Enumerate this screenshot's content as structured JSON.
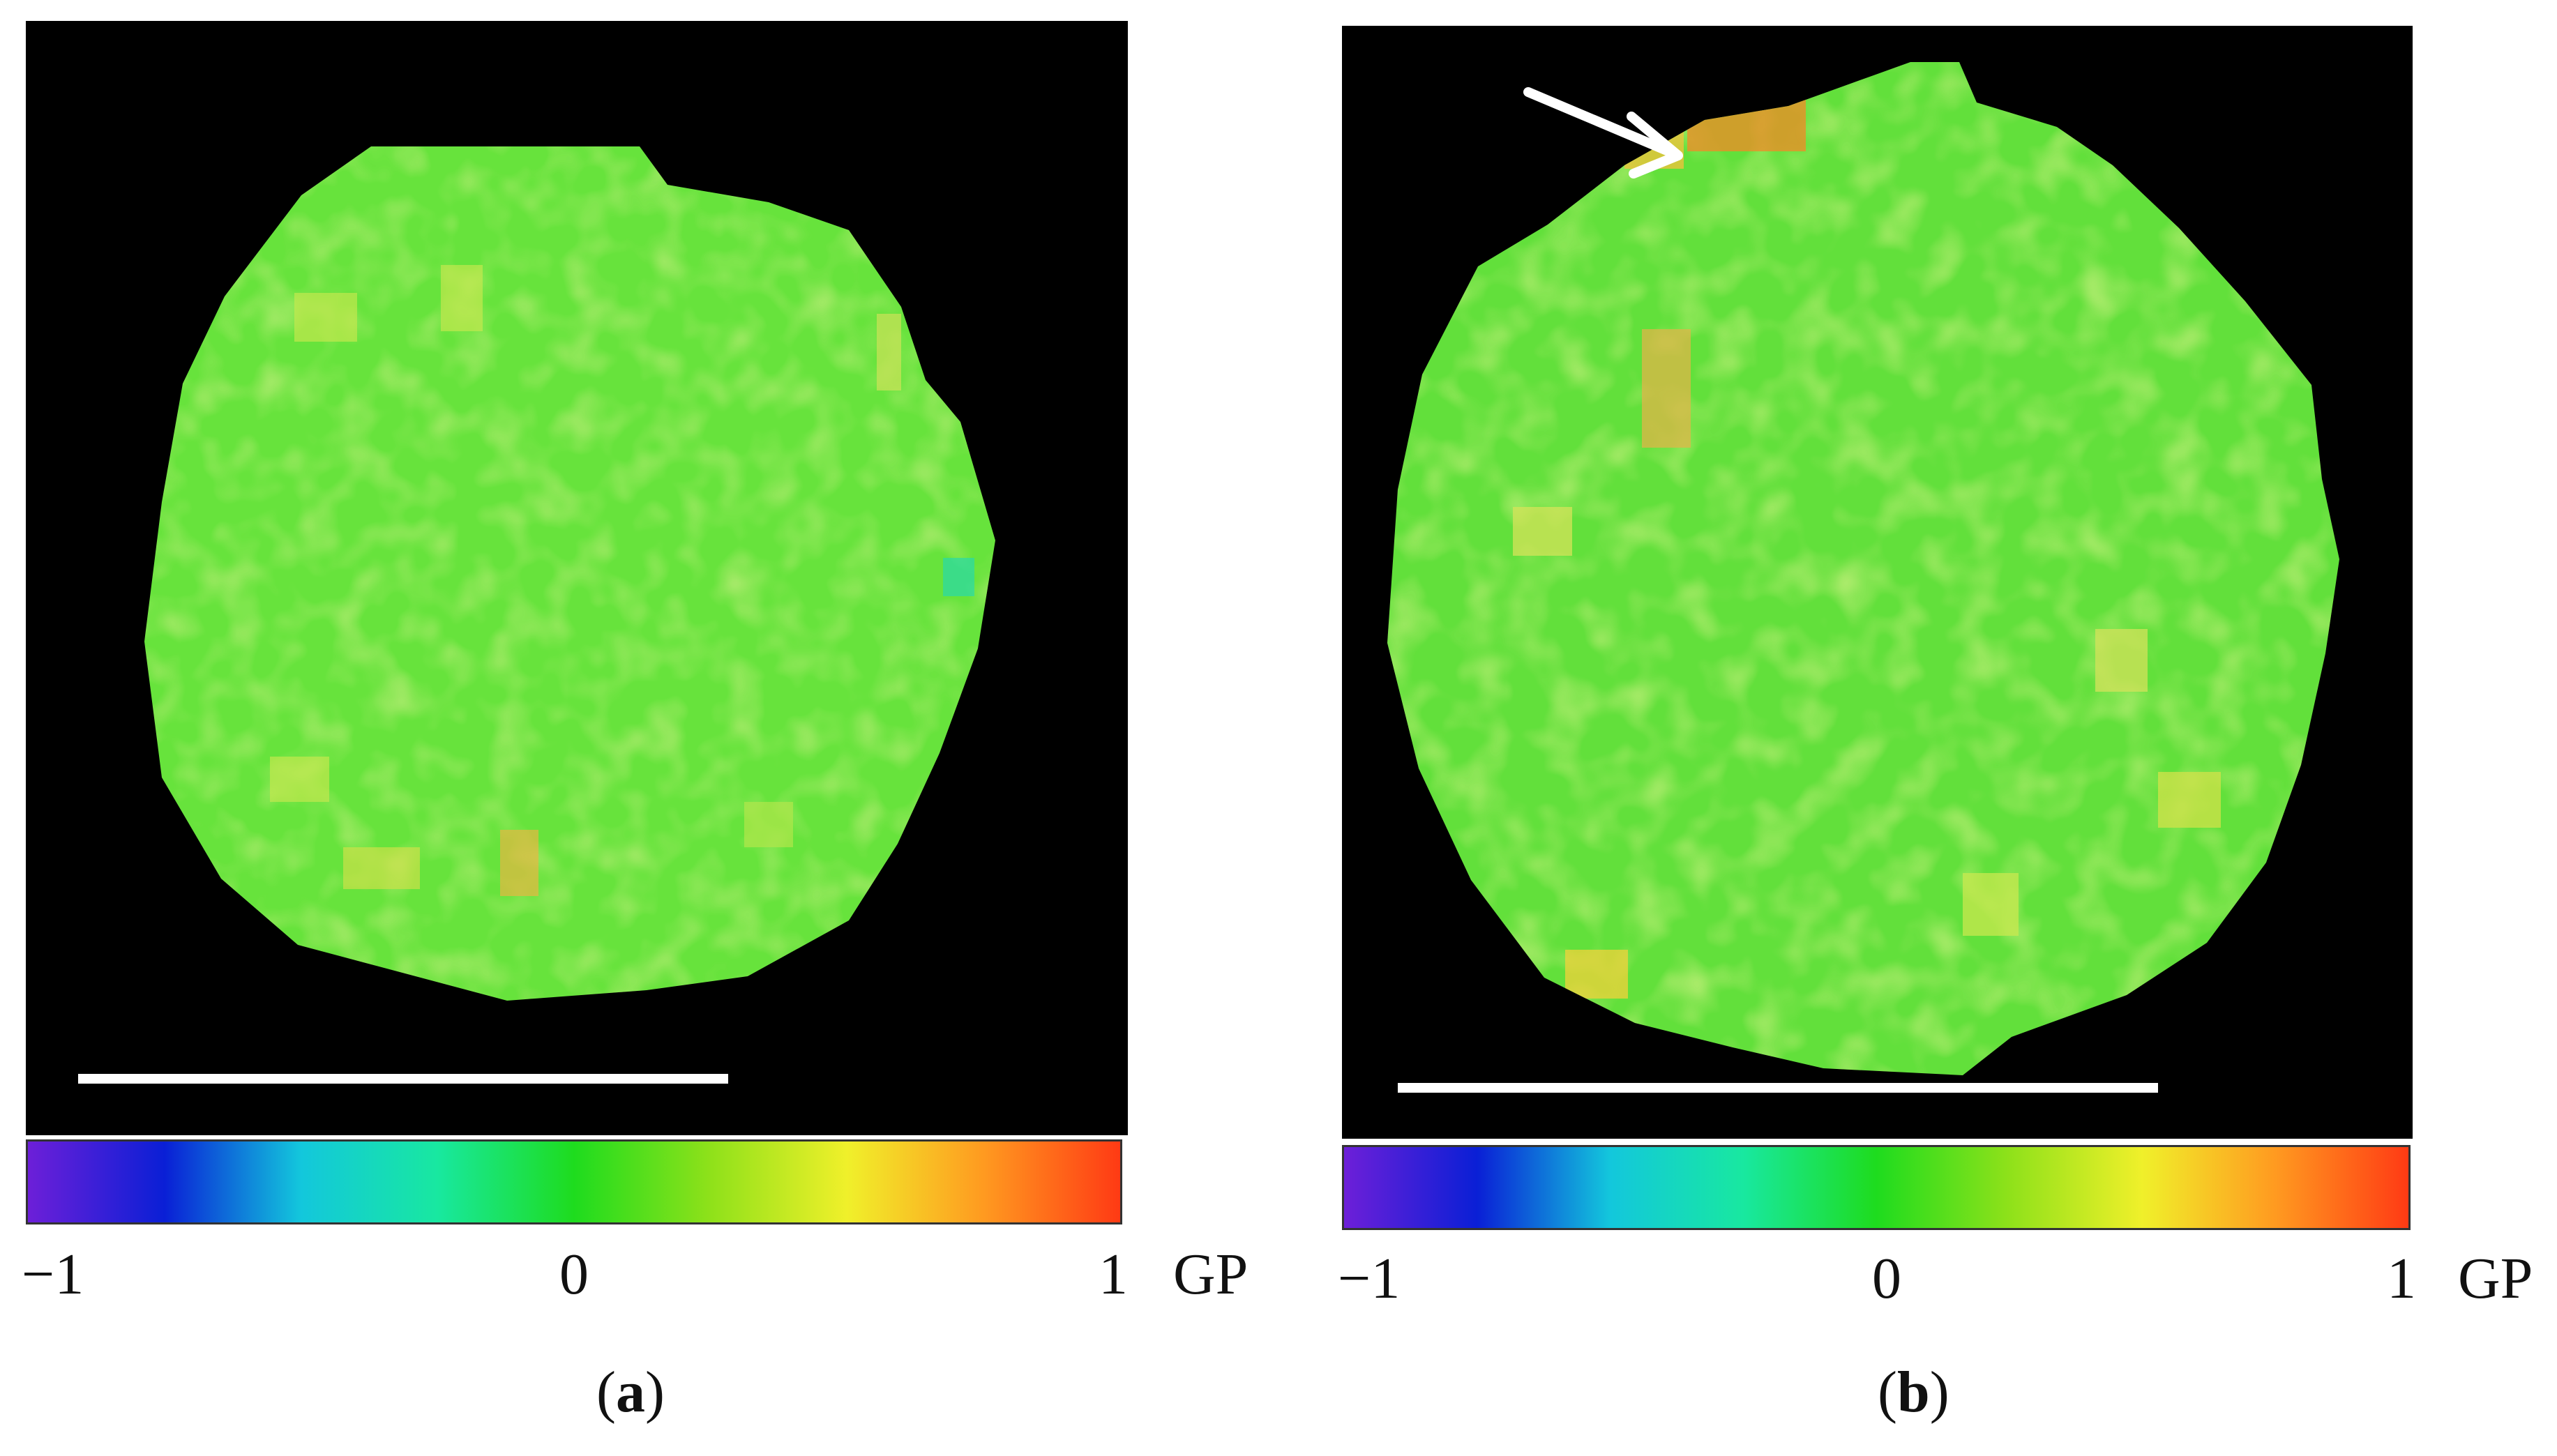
{
  "figure": {
    "panels": [
      {
        "id": "a",
        "caption_open": "(",
        "caption_letter": "a",
        "caption_close": ")",
        "colorbar": {
          "min_label": "−1",
          "zero_label": "0",
          "max_label": "1",
          "unit_label": "GP",
          "stops": [
            "#6d1fd8",
            "#0a1fd6",
            "#13c7dc",
            "#18e8a0",
            "#1edc1e",
            "#8fe11a",
            "#f0f02a",
            "#ff9a20",
            "#ff3a14"
          ]
        },
        "map": {
          "background": "#000000",
          "base_fill": "#67e33c",
          "secondary_fill": "#9ae34b",
          "accent_fill": "#c9e84f",
          "highlight_fill": "#f1b342"
        }
      },
      {
        "id": "b",
        "caption_open": "(",
        "caption_letter": "b",
        "caption_close": ")",
        "colorbar": {
          "min_label": "−1",
          "zero_label": "0",
          "max_label": "1",
          "unit_label": "GP",
          "stops": [
            "#6d1fd8",
            "#0a1fd6",
            "#13c7dc",
            "#18e8a0",
            "#1edc1e",
            "#8fe11a",
            "#f0f02a",
            "#ff9a20",
            "#ff3a14"
          ]
        },
        "map": {
          "background": "#000000",
          "base_fill": "#62e03b",
          "secondary_fill": "#9ae44b",
          "accent_fill": "#d8e54b",
          "highlight_fill": "#f38a27"
        },
        "annotation": {
          "type": "arrow",
          "color": "#ffffff"
        }
      }
    ]
  }
}
